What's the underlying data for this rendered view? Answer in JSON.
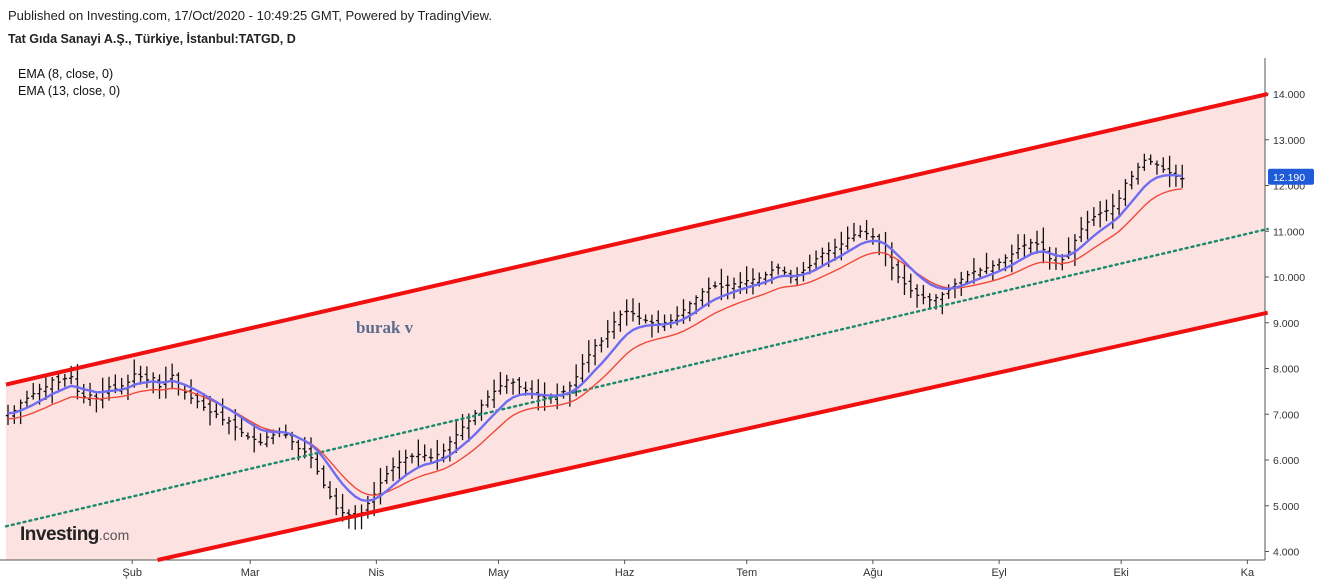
{
  "header": {
    "published": "Published on Investing.com, 17/Oct/2020 - 10:49:25 GMT, Powered by TradingView.",
    "symbol": "Tat Gıda Sanayi A.Ş., Türkiye, İstanbul:TATGD, D"
  },
  "legend": {
    "ema1": "EMA (8, close, 0)",
    "ema2": "EMA (13, close, 0)"
  },
  "watermark": {
    "brand": "Investing",
    "domain": ".com"
  },
  "colors": {
    "channel": "#f01010",
    "channel_fill": "#fde2e2",
    "midline": "#1a8a6a",
    "ema1": "#6f6cf0",
    "ema2": "#f04a3a",
    "bars": "#111111",
    "price_tag": "#1f5bd8"
  },
  "chart_data": {
    "type": "ohlc-bar",
    "y_ticks": [
      "4.000",
      "5.000",
      "6.000",
      "7.000",
      "8.000",
      "9.000",
      "10.000",
      "11.000",
      "12.000",
      "13.000",
      "14.000"
    ],
    "y_range": [
      3.8,
      15.0
    ],
    "x_labels": [
      "Şub",
      "Mar",
      "Nis",
      "May",
      "Haz",
      "Tem",
      "Ağu",
      "Eyl",
      "Eki",
      "Ka"
    ],
    "last_price": "12.190",
    "annotation": "burak v",
    "channel": {
      "upper": [
        {
          "date": "2020-01-01",
          "y": 7.65
        },
        {
          "date": "2020-11-06",
          "y": 14.0
        }
      ],
      "lower": [
        {
          "date": "2020-02-04",
          "y": 3.75
        },
        {
          "date": "2020-11-06",
          "y": 9.22
        }
      ],
      "middle": [
        {
          "date": "2020-01-01",
          "y": 4.55
        },
        {
          "date": "2020-11-06",
          "y": 11.05
        }
      ]
    },
    "closes": [
      7.02,
      7.08,
      7.25,
      7.35,
      7.45,
      7.55,
      7.6,
      7.75,
      7.7,
      7.78,
      7.82,
      7.5,
      7.38,
      7.42,
      7.35,
      7.5,
      7.6,
      7.55,
      7.62,
      7.7,
      7.88,
      7.82,
      7.75,
      7.8,
      7.6,
      7.72,
      7.85,
      7.55,
      7.48,
      7.35,
      7.28,
      7.15,
      7.05,
      7.0,
      6.88,
      6.85,
      6.72,
      6.6,
      6.5,
      6.45,
      6.38,
      6.5,
      6.55,
      6.62,
      6.55,
      6.4,
      6.25,
      6.18,
      6.05,
      5.75,
      5.45,
      5.2,
      4.95,
      4.85,
      4.8,
      4.78,
      4.85,
      5.05,
      5.25,
      5.5,
      5.7,
      5.85,
      5.95,
      6.05,
      6.08,
      6.12,
      6.1,
      6.05,
      6.12,
      6.2,
      6.4,
      6.55,
      6.72,
      6.85,
      7.02,
      7.2,
      7.38,
      7.5,
      7.62,
      7.75,
      7.7,
      7.6,
      7.52,
      7.45,
      7.4,
      7.35,
      7.38,
      7.42,
      7.5,
      7.62,
      7.82,
      8.1,
      8.3,
      8.5,
      8.6,
      8.8,
      9.02,
      9.18,
      9.25,
      9.2,
      9.1,
      9.05,
      9.0,
      8.98,
      9.0,
      9.05,
      9.15,
      9.28,
      9.42,
      9.55,
      9.68,
      9.75,
      9.8,
      9.78,
      9.82,
      9.85,
      9.88,
      9.92,
      9.95,
      9.98,
      10.05,
      10.15,
      10.2,
      10.1,
      10.0,
      10.05,
      10.15,
      10.25,
      10.4,
      10.52,
      10.58,
      10.65,
      10.72,
      10.85,
      10.92,
      11.0,
      10.95,
      10.88,
      10.75,
      10.5,
      10.2,
      10.0,
      9.85,
      9.7,
      9.6,
      9.55,
      9.5,
      9.55,
      9.62,
      9.72,
      9.85,
      9.95,
      10.05,
      10.12,
      10.15,
      10.2,
      10.25,
      10.32,
      10.42,
      10.5,
      10.62,
      10.7,
      10.75,
      10.72,
      10.6,
      10.4,
      10.3,
      10.38,
      10.55,
      10.8,
      11.05,
      11.2,
      11.32,
      11.4,
      11.45,
      11.55,
      11.72,
      12.05,
      12.2,
      12.4,
      12.55,
      12.52,
      12.45,
      12.35,
      12.28,
      12.2,
      12.15
    ]
  }
}
